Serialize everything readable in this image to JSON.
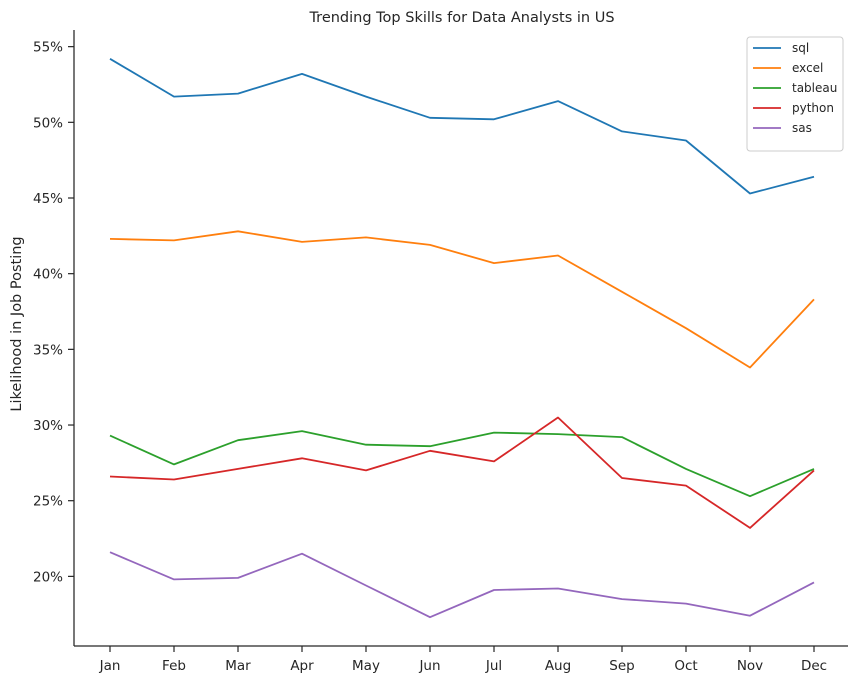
{
  "chart_data": {
    "type": "line",
    "title": "Trending Top Skills for Data Analysts in US",
    "xlabel": "",
    "ylabel": "Likelihood in Job Posting",
    "categories": [
      "Jan",
      "Feb",
      "Mar",
      "Apr",
      "May",
      "Jun",
      "Jul",
      "Aug",
      "Sep",
      "Oct",
      "Nov",
      "Dec"
    ],
    "y_ticks": [
      20,
      25,
      30,
      35,
      40,
      45,
      50,
      55
    ],
    "y_tick_labels": [
      "20%",
      "25%",
      "30%",
      "35%",
      "40%",
      "45%",
      "50%",
      "55%"
    ],
    "ylim": [
      15.4,
      56.1
    ],
    "grid": false,
    "legend_position": "top-right",
    "series": [
      {
        "name": "sql",
        "color": "#1f77b4",
        "values": [
          54.2,
          51.7,
          51.9,
          53.2,
          51.7,
          50.3,
          50.2,
          51.4,
          49.4,
          48.8,
          45.3,
          46.4
        ]
      },
      {
        "name": "excel",
        "color": "#ff7f0e",
        "values": [
          42.3,
          42.2,
          42.8,
          42.1,
          42.4,
          41.9,
          40.7,
          41.2,
          38.8,
          36.4,
          33.8,
          38.3
        ]
      },
      {
        "name": "tableau",
        "color": "#2ca02c",
        "values": [
          29.3,
          27.4,
          29.0,
          29.6,
          28.7,
          28.6,
          29.5,
          29.4,
          29.2,
          27.1,
          25.3,
          27.1
        ]
      },
      {
        "name": "python",
        "color": "#d62728",
        "values": [
          26.6,
          26.4,
          27.1,
          27.8,
          27.0,
          28.3,
          27.6,
          30.5,
          26.5,
          26.0,
          23.2,
          27.0
        ]
      },
      {
        "name": "sas",
        "color": "#9467bd",
        "values": [
          21.6,
          19.8,
          19.9,
          21.5,
          19.4,
          17.3,
          19.1,
          19.2,
          18.5,
          18.2,
          17.4,
          19.6
        ]
      }
    ]
  }
}
